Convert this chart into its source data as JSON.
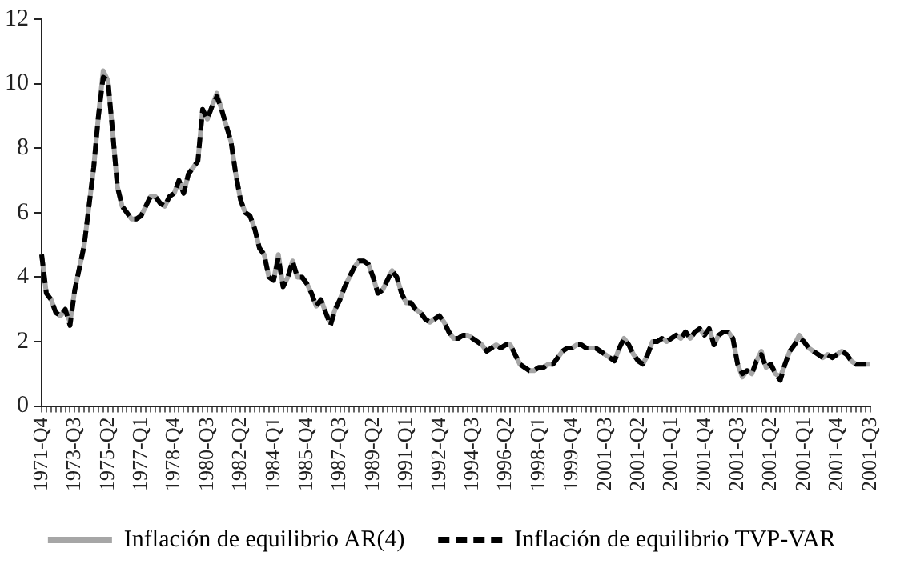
{
  "chart_data": {
    "type": "line",
    "categories": [
      "1971-Q4",
      null,
      null,
      null,
      null,
      null,
      null,
      "1973-Q3",
      null,
      null,
      null,
      null,
      null,
      null,
      "1975-Q2",
      null,
      null,
      null,
      null,
      null,
      null,
      "1977-Q1",
      null,
      null,
      null,
      null,
      null,
      null,
      "1978-Q4",
      null,
      null,
      null,
      null,
      null,
      null,
      "1980-Q3",
      null,
      null,
      null,
      null,
      null,
      null,
      "1982-Q2",
      null,
      null,
      null,
      null,
      null,
      null,
      "1984-Q1",
      null,
      null,
      null,
      null,
      null,
      null,
      "1985-Q4",
      null,
      null,
      null,
      null,
      null,
      null,
      "1987-Q3",
      null,
      null,
      null,
      null,
      null,
      null,
      "1989-Q2",
      null,
      null,
      null,
      null,
      null,
      null,
      "1991-Q1",
      null,
      null,
      null,
      null,
      null,
      null,
      "1992-Q4",
      null,
      null,
      null,
      null,
      null,
      null,
      "1994-Q3",
      null,
      null,
      null,
      null,
      null,
      null,
      "1996-Q2",
      null,
      null,
      null,
      null,
      null,
      null,
      "1998-Q1",
      null,
      null,
      null,
      null,
      null,
      null,
      "1999-Q4",
      null,
      null,
      null,
      null,
      null,
      null,
      "2001-Q3",
      null,
      null,
      null,
      null,
      null,
      null,
      "2001-Q2",
      null,
      null,
      null,
      null,
      null,
      null,
      "2001-Q1",
      null,
      null,
      null,
      null,
      null,
      null,
      "2001-Q4",
      null,
      null,
      null,
      null,
      null,
      null,
      "2001-Q3",
      null,
      null,
      null,
      null,
      null,
      null,
      "2001-Q2",
      null,
      null,
      null,
      null,
      null,
      null,
      "2001-Q1",
      null,
      null,
      null,
      null,
      null,
      null,
      "2001-Q4",
      null,
      null,
      null,
      null,
      null,
      null,
      "2001-Q3"
    ],
    "series": [
      {
        "name": "Inflación de equilibrio AR(4)",
        "color": "#a6a6a6",
        "line_style": "solid",
        "values": [
          4.7,
          3.5,
          3.3,
          2.9,
          2.8,
          3.0,
          2.6,
          3.6,
          4.3,
          5.0,
          6.2,
          7.4,
          9.0,
          10.4,
          10.1,
          8.5,
          6.8,
          6.2,
          6.0,
          5.8,
          5.8,
          5.9,
          6.2,
          6.5,
          6.5,
          6.3,
          6.2,
          6.5,
          6.6,
          7.0,
          6.6,
          7.2,
          7.4,
          7.6,
          9.2,
          8.9,
          9.3,
          9.7,
          9.2,
          8.7,
          8.2,
          7.2,
          6.4,
          6.0,
          5.9,
          5.5,
          4.9,
          4.7,
          4.0,
          3.9,
          4.7,
          3.7,
          4.0,
          4.5,
          4.0,
          4.0,
          3.8,
          3.5,
          3.1,
          3.3,
          2.9,
          2.6,
          3.0,
          3.3,
          3.7,
          4.0,
          4.3,
          4.5,
          4.5,
          4.4,
          4.0,
          3.5,
          3.6,
          3.9,
          4.2,
          4.0,
          3.5,
          3.2,
          3.2,
          3.0,
          2.9,
          2.7,
          2.6,
          2.7,
          2.8,
          2.6,
          2.3,
          2.1,
          2.1,
          2.2,
          2.2,
          2.1,
          2.0,
          1.9,
          1.7,
          1.8,
          1.9,
          1.8,
          1.9,
          1.9,
          1.6,
          1.3,
          1.2,
          1.1,
          1.1,
          1.2,
          1.2,
          1.3,
          1.3,
          1.5,
          1.7,
          1.8,
          1.8,
          1.9,
          1.9,
          1.8,
          1.8,
          1.8,
          1.7,
          1.6,
          1.5,
          1.4,
          1.8,
          2.1,
          1.9,
          1.6,
          1.4,
          1.3,
          1.6,
          2.0,
          2.0,
          2.1,
          2.0,
          2.1,
          2.2,
          2.1,
          2.3,
          2.1,
          2.3,
          2.4,
          2.2,
          2.4,
          1.9,
          2.2,
          2.3,
          2.3,
          2.1,
          1.3,
          0.9,
          1.1,
          1.0,
          1.4,
          1.7,
          1.2,
          1.3,
          1.0,
          0.9,
          1.3,
          1.7,
          1.9,
          2.2,
          2.0,
          1.8,
          1.7,
          1.6,
          1.5,
          1.6,
          1.5,
          1.6,
          1.7,
          1.6,
          1.4,
          1.3,
          1.3,
          1.3,
          1.3
        ]
      },
      {
        "name": "Inflación de equilibrio TVP-VAR",
        "color": "#000000",
        "line_style": "dashed",
        "values": [
          4.7,
          3.5,
          3.3,
          2.9,
          2.8,
          3.0,
          2.5,
          3.6,
          4.3,
          5.0,
          6.2,
          7.4,
          9.0,
          10.2,
          10.1,
          8.5,
          6.8,
          6.2,
          6.0,
          5.8,
          5.8,
          5.9,
          6.2,
          6.5,
          6.5,
          6.3,
          6.2,
          6.5,
          6.6,
          7.0,
          6.6,
          7.2,
          7.4,
          7.6,
          9.2,
          8.9,
          9.3,
          9.6,
          9.2,
          8.7,
          8.2,
          7.2,
          6.4,
          6.0,
          5.9,
          5.5,
          4.9,
          4.7,
          4.0,
          3.9,
          4.6,
          3.7,
          4.0,
          4.5,
          4.0,
          4.0,
          3.8,
          3.5,
          3.1,
          3.3,
          2.9,
          2.5,
          3.0,
          3.3,
          3.7,
          4.0,
          4.3,
          4.5,
          4.5,
          4.4,
          4.0,
          3.5,
          3.6,
          3.9,
          4.2,
          4.0,
          3.5,
          3.2,
          3.2,
          3.0,
          2.9,
          2.7,
          2.6,
          2.7,
          2.8,
          2.6,
          2.3,
          2.1,
          2.1,
          2.2,
          2.2,
          2.1,
          2.0,
          1.9,
          1.7,
          1.8,
          1.9,
          1.8,
          1.9,
          1.9,
          1.6,
          1.3,
          1.2,
          1.1,
          1.1,
          1.2,
          1.2,
          1.3,
          1.3,
          1.5,
          1.7,
          1.8,
          1.8,
          1.9,
          1.9,
          1.8,
          1.8,
          1.8,
          1.7,
          1.6,
          1.5,
          1.4,
          1.8,
          2.1,
          1.9,
          1.6,
          1.4,
          1.3,
          1.6,
          2.0,
          2.0,
          2.1,
          2.0,
          2.1,
          2.2,
          2.1,
          2.3,
          2.1,
          2.3,
          2.4,
          2.2,
          2.4,
          1.9,
          2.2,
          2.3,
          2.3,
          2.1,
          1.3,
          1.0,
          1.1,
          1.0,
          1.4,
          1.6,
          1.2,
          1.3,
          1.0,
          0.8,
          1.3,
          1.7,
          1.9,
          2.1,
          2.0,
          1.8,
          1.7,
          1.6,
          1.5,
          1.6,
          1.5,
          1.6,
          1.7,
          1.6,
          1.4,
          1.3,
          1.3,
          1.3,
          1.3
        ]
      }
    ],
    "ylim": [
      0,
      12
    ],
    "yticks": [
      0,
      2,
      4,
      6,
      8,
      10,
      12
    ],
    "grid": false,
    "legend": "bottom",
    "marker": "none"
  }
}
